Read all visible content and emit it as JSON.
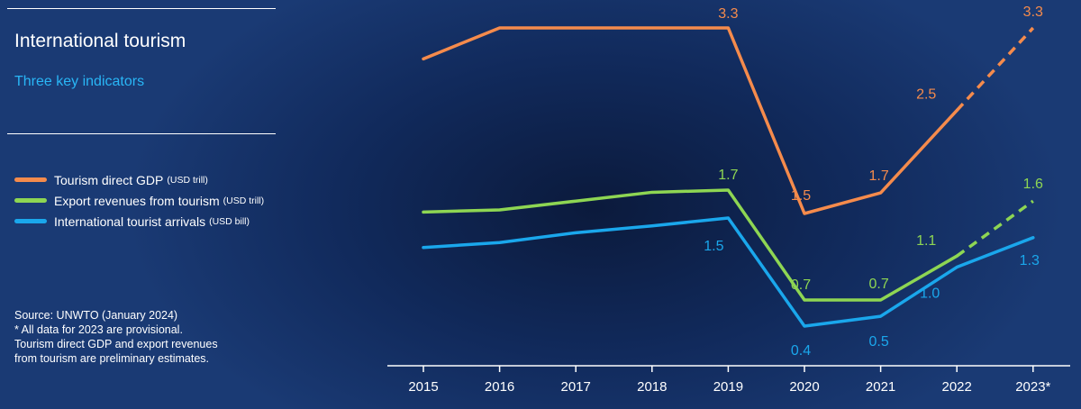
{
  "panel": {
    "title": "International tourism",
    "subtitle": "Three key indicators",
    "source": "Source: UNWTO (January 2024)",
    "notes": [
      "* All data for 2023 are provisional.",
      "Tourism direct GDP and export revenues",
      "from tourism are preliminary estimates."
    ]
  },
  "chart_data": {
    "type": "line",
    "categories": [
      "2015",
      "2016",
      "2017",
      "2018",
      "2019",
      "2020",
      "2021",
      "2022",
      "2023*"
    ],
    "series": [
      {
        "name": "Tourism direct GDP",
        "unit": "(USD trill)",
        "color": "#f58b4c",
        "values": [
          3.0,
          3.3,
          3.3,
          3.3,
          3.3,
          1.5,
          1.7,
          2.5,
          3.3
        ],
        "data_labels": [
          "",
          "",
          "",
          "",
          "3.3",
          "1.5",
          "1.7",
          "2.5",
          "3.3"
        ],
        "provisional_from_index": 7
      },
      {
        "name": "Export revenues from tourism",
        "unit": "(USD trill)",
        "color": "#8ed653",
        "values": [
          1.5,
          1.52,
          1.6,
          1.68,
          1.7,
          0.7,
          0.7,
          1.1,
          1.6
        ],
        "data_labels": [
          "",
          "",
          "",
          "",
          "1.7",
          "0.7",
          "0.7",
          "1.1",
          "1.6"
        ],
        "provisional_from_index": 7
      },
      {
        "name": "International tourist arrivals",
        "unit": "(USD bill)",
        "color": "#1aa7ec",
        "values": [
          1.2,
          1.25,
          1.35,
          1.42,
          1.5,
          0.4,
          0.5,
          1.0,
          1.3
        ],
        "data_labels": [
          "",
          "",
          "",
          "",
          "1.5",
          "0.4",
          "0.5",
          "1.0",
          "1.3"
        ],
        "provisional_from_index": 8
      }
    ],
    "grid": false,
    "legend_position": "left"
  }
}
